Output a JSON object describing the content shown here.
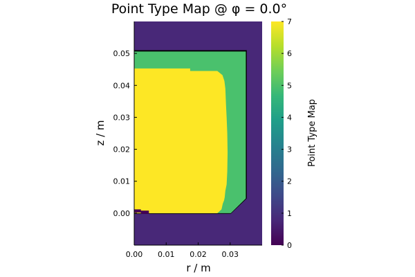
{
  "chart_data": {
    "type": "heatmap",
    "title": "Point Type Map @ φ = 0.0°",
    "xlabel": "r / m",
    "ylabel": "z / m",
    "xlim": [
      0.0,
      0.04
    ],
    "ylim": [
      -0.01,
      0.06
    ],
    "x_ticks": [
      "0.00",
      "0.01",
      "0.02",
      "0.03"
    ],
    "y_ticks": [
      "0.00",
      "0.01",
      "0.02",
      "0.03",
      "0.04",
      "0.05"
    ],
    "colorbar": {
      "label": "Point Type Map",
      "range": [
        0,
        7
      ],
      "ticks": [
        "0",
        "1",
        "2",
        "3",
        "4",
        "5",
        "6",
        "7"
      ],
      "colormap": "viridis"
    },
    "regions": [
      {
        "value": 1,
        "color": "#482878",
        "points": [
          [
            0.0,
            -0.01
          ],
          [
            0.04,
            -0.01
          ],
          [
            0.04,
            0.06
          ],
          [
            0.0,
            0.06
          ]
        ]
      },
      {
        "value": 0,
        "color": "#000000",
        "points": [
          [
            0.0,
            0.051
          ],
          [
            0.0352,
            0.051
          ],
          [
            0.0352,
            0.0046
          ],
          [
            0.0302,
            -0.0002
          ],
          [
            0.0,
            -0.0002
          ]
        ]
      },
      {
        "value": 5,
        "color": "#4ac16d",
        "points": [
          [
            0.0,
            0.0506
          ],
          [
            0.0349,
            0.0506
          ],
          [
            0.0349,
            0.0046
          ],
          [
            0.0302,
            0.0
          ],
          [
            0.0,
            0.0
          ]
        ]
      },
      {
        "value": 7,
        "color": "#fde725",
        "points": [
          [
            0.0,
            0.0453
          ],
          [
            0.0175,
            0.0453
          ],
          [
            0.0175,
            0.0445
          ],
          [
            0.026,
            0.0445
          ],
          [
            0.0276,
            0.0432
          ],
          [
            0.0282,
            0.0414
          ],
          [
            0.0285,
            0.039
          ],
          [
            0.0287,
            0.034
          ],
          [
            0.0289,
            0.03
          ],
          [
            0.0291,
            0.025
          ],
          [
            0.0292,
            0.019
          ],
          [
            0.0291,
            0.013
          ],
          [
            0.0289,
            0.009
          ],
          [
            0.0285,
            0.007
          ],
          [
            0.0283,
            0.005
          ],
          [
            0.0281,
            0.004
          ],
          [
            0.0277,
            0.003
          ],
          [
            0.0273,
            0.0012
          ],
          [
            0.026,
            0.0
          ],
          [
            0.0,
            0.0
          ]
        ]
      },
      {
        "value": 0,
        "color": "#440154",
        "points": [
          [
            0.0,
            0.0002
          ],
          [
            0.0,
            0.0012
          ],
          [
            0.0021,
            0.0012
          ],
          [
            0.0021,
            0.0008
          ],
          [
            0.0046,
            0.0008
          ],
          [
            0.0046,
            -0.0002
          ],
          [
            0.0021,
            -0.0002
          ],
          [
            0.0021,
            0.0002
          ]
        ]
      }
    ]
  }
}
